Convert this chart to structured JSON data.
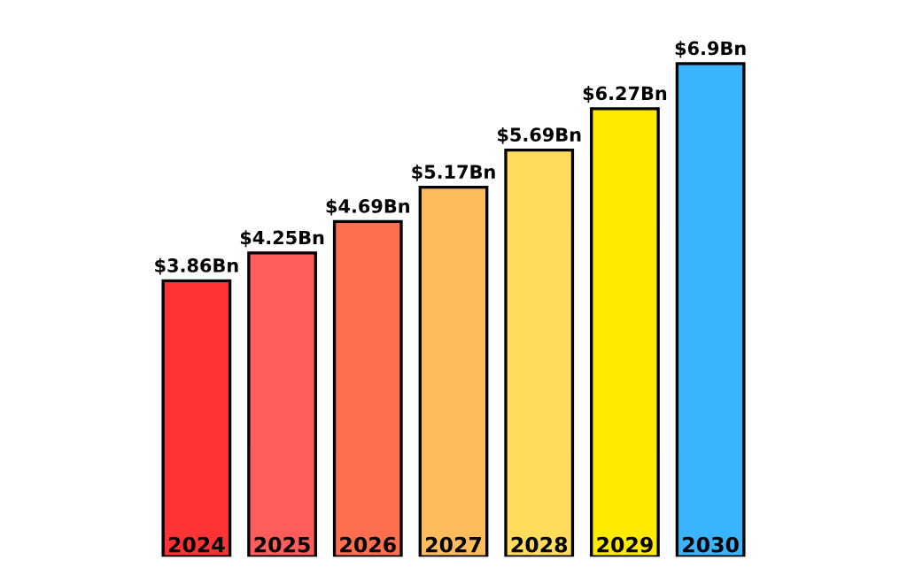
{
  "chart_data": {
    "type": "bar",
    "categories": [
      "2024",
      "2025",
      "2026",
      "2027",
      "2028",
      "2029",
      "2030"
    ],
    "values": [
      3.86,
      4.25,
      4.69,
      5.17,
      5.69,
      6.27,
      6.9
    ],
    "value_labels": [
      "$3.86Bn",
      "$4.25Bn",
      "$4.69Bn",
      "$5.17Bn",
      "$5.69Bn",
      "$6.27Bn",
      "$6.9Bn"
    ],
    "colors": [
      "#ff3333",
      "#ff5c5c",
      "#ff6e4e",
      "#ffbb5c",
      "#ffdc5c",
      "#ffea00",
      "#3ab4ff"
    ]
  }
}
